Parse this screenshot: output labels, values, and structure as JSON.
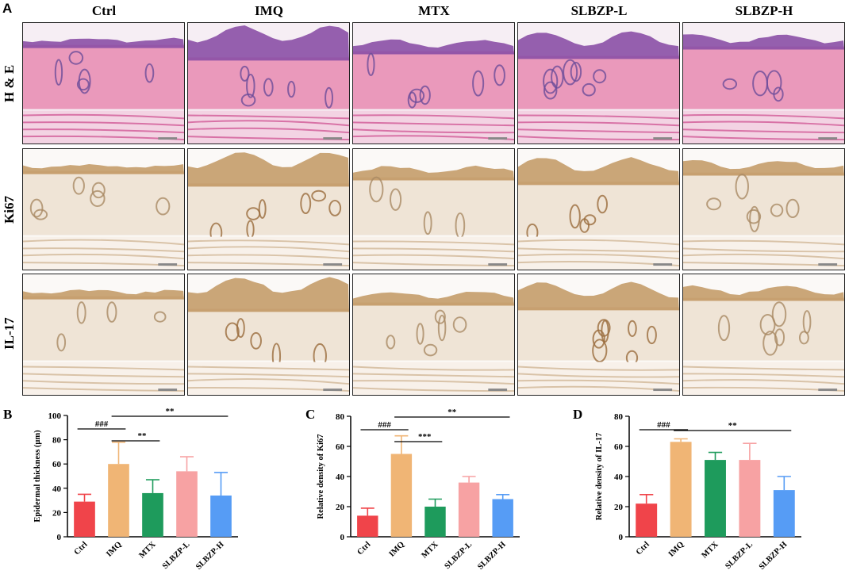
{
  "panel_a": {
    "letter": "A",
    "columns": [
      "Ctrl",
      "IMQ",
      "MTX",
      "SLBZP-L",
      "SLBZP-H"
    ],
    "rows": [
      "H & E",
      "Ki67",
      "IL-17"
    ]
  },
  "colors": {
    "Ctrl": "#f0444a",
    "IMQ": "#f0b575",
    "MTX": "#1e9b5c",
    "SLBZP-L": "#f7a2a3",
    "SLBZP-H": "#569cf5",
    "he_dermis": "#e889b0",
    "he_epidermis": "#8b4fa6",
    "ihc_stain": "#b98a4e"
  },
  "chart_data": [
    {
      "type": "bar",
      "letter": "B",
      "categories": [
        "Ctrl",
        "IMQ",
        "MTX",
        "SLBZP-L",
        "SLBZP-H"
      ],
      "values": [
        29,
        60,
        36,
        54,
        34
      ],
      "errors": [
        6,
        18,
        11,
        12,
        19
      ],
      "ylabel": "Epidermal thickness (μm)",
      "ylim": [
        0,
        100
      ],
      "yticks": [
        0,
        20,
        40,
        60,
        80,
        100
      ],
      "comparisons": [
        {
          "from": 0,
          "to": 1,
          "label": "###"
        },
        {
          "from": 1,
          "to": 2,
          "label": "**"
        },
        {
          "from": 1,
          "to": 4,
          "label": "**"
        }
      ]
    },
    {
      "type": "bar",
      "letter": "C",
      "categories": [
        "Ctrl",
        "IMQ",
        "MTX",
        "SLBZP-L",
        "SLBZP-H"
      ],
      "values": [
        14,
        55,
        20,
        36,
        25
      ],
      "errors": [
        5,
        12,
        5,
        4,
        3
      ],
      "ylabel": "Relative density of Ki67",
      "ylim": [
        0,
        80
      ],
      "yticks": [
        0,
        20,
        40,
        60,
        80
      ],
      "comparisons": [
        {
          "from": 0,
          "to": 1,
          "label": "###"
        },
        {
          "from": 1,
          "to": 2,
          "label": "***"
        },
        {
          "from": 1,
          "to": 4,
          "label": "**"
        }
      ]
    },
    {
      "type": "bar",
      "letter": "D",
      "categories": [
        "Ctrl",
        "IMQ",
        "MTX",
        "SLBZP-L",
        "SLBZP-H"
      ],
      "values": [
        22,
        63,
        51,
        51,
        31
      ],
      "errors": [
        6,
        2,
        5,
        11,
        9
      ],
      "ylabel": "Relative density of IL-17",
      "ylim": [
        0,
        80
      ],
      "yticks": [
        0,
        20,
        40,
        60,
        80
      ],
      "comparisons": [
        {
          "from": 0,
          "to": 1,
          "label": "###"
        },
        {
          "from": 1,
          "to": 4,
          "label": "**"
        }
      ]
    }
  ]
}
